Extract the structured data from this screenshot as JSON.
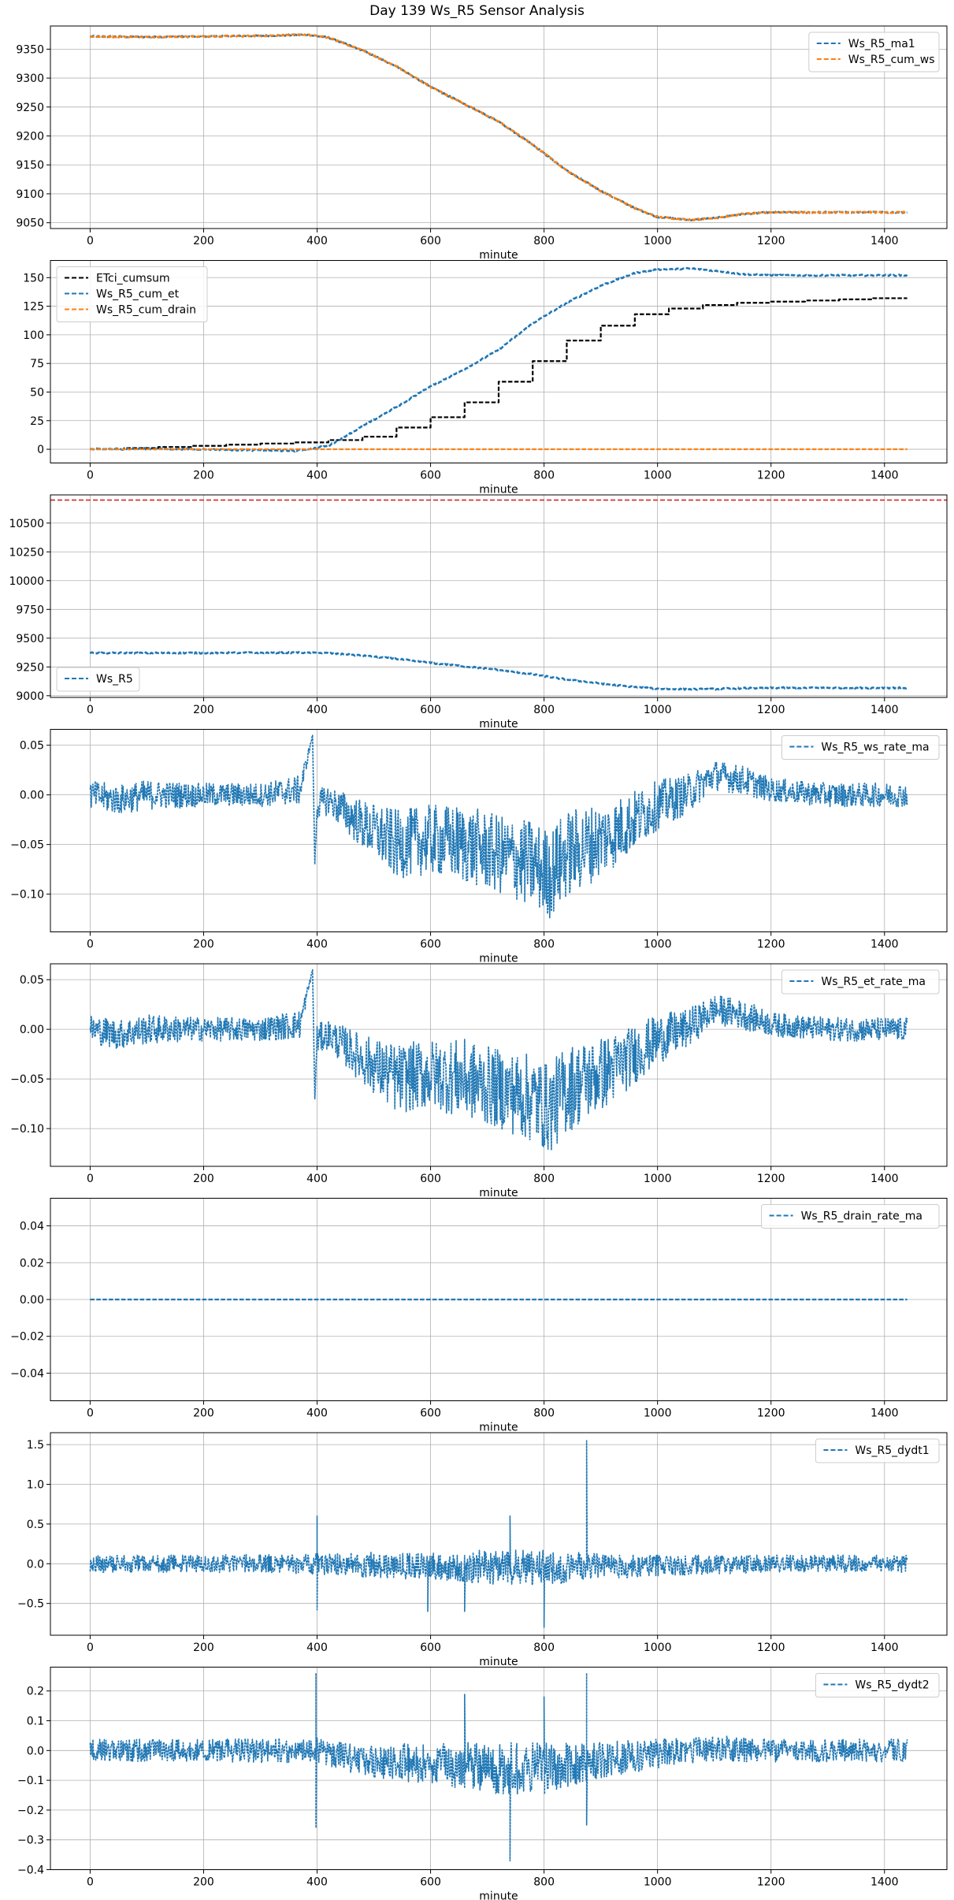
{
  "figure": {
    "title": "Day 139 Ws_R5 Sensor Analysis"
  },
  "colors": {
    "blue": "#1f77b4",
    "orange": "#ff7f0e",
    "black": "#000000",
    "red": "#d62728",
    "grid": "#b0b0b0"
  },
  "chart_data": [
    {
      "type": "line",
      "xlabel": "minute",
      "xlim": [
        -70,
        1510
      ],
      "ylim": [
        9040,
        9390
      ],
      "xticks": [
        0,
        200,
        400,
        600,
        800,
        1000,
        1200,
        1400
      ],
      "yticks": [
        9050,
        9100,
        9150,
        9200,
        9250,
        9300,
        9350
      ],
      "grid": true,
      "legend": "top-right",
      "series": [
        {
          "name": "Ws_R5_ma1",
          "color": "#1f77b4",
          "style": "dashed",
          "x": [
            0,
            100,
            200,
            300,
            380,
            420,
            480,
            540,
            600,
            660,
            720,
            780,
            840,
            900,
            960,
            1000,
            1060,
            1100,
            1150,
            1200,
            1300,
            1440
          ],
          "y": [
            9372,
            9371,
            9372,
            9373,
            9375,
            9370,
            9348,
            9320,
            9285,
            9255,
            9225,
            9185,
            9140,
            9105,
            9075,
            9060,
            9055,
            9058,
            9065,
            9068,
            9068,
            9068
          ]
        },
        {
          "name": "Ws_R5_cum_ws",
          "color": "#ff7f0e",
          "style": "dashed",
          "x": [
            0,
            100,
            200,
            300,
            380,
            420,
            480,
            540,
            600,
            660,
            720,
            780,
            840,
            900,
            960,
            1000,
            1060,
            1100,
            1150,
            1200,
            1300,
            1440
          ],
          "y": [
            9372,
            9371,
            9372,
            9373,
            9375,
            9370,
            9348,
            9320,
            9285,
            9255,
            9225,
            9185,
            9140,
            9105,
            9075,
            9060,
            9055,
            9058,
            9065,
            9068,
            9068,
            9068
          ]
        }
      ]
    },
    {
      "type": "line",
      "xlabel": "minute",
      "xlim": [
        -70,
        1510
      ],
      "ylim": [
        -12,
        165
      ],
      "xticks": [
        0,
        200,
        400,
        600,
        800,
        1000,
        1200,
        1400
      ],
      "yticks": [
        0,
        25,
        50,
        75,
        100,
        125,
        150
      ],
      "grid": true,
      "legend": "top-left",
      "series": [
        {
          "name": "ETci_cumsum",
          "color": "#000000",
          "style": "dashed",
          "step": true,
          "x": [
            0,
            60,
            120,
            180,
            240,
            300,
            360,
            420,
            480,
            540,
            600,
            660,
            720,
            780,
            840,
            900,
            960,
            1020,
            1080,
            1140,
            1200,
            1260,
            1320,
            1380,
            1440
          ],
          "y": [
            0,
            1,
            2,
            3,
            4,
            5,
            6,
            8,
            11,
            19,
            28,
            41,
            59,
            77,
            95,
            108,
            118,
            123,
            126,
            128,
            129,
            130,
            131,
            132,
            132
          ]
        },
        {
          "name": "Ws_R5_cum_et",
          "color": "#1f77b4",
          "style": "dashed",
          "x": [
            0,
            100,
            200,
            300,
            360,
            420,
            480,
            540,
            600,
            660,
            720,
            780,
            840,
            900,
            960,
            1000,
            1060,
            1100,
            1150,
            1200,
            1300,
            1440
          ],
          "y": [
            0,
            0.5,
            0,
            -1,
            -1.5,
            3,
            20,
            37,
            55,
            70,
            87,
            110,
            128,
            143,
            154,
            157,
            158,
            156,
            153,
            152,
            152,
            152
          ]
        },
        {
          "name": "Ws_R5_cum_drain",
          "color": "#ff7f0e",
          "style": "dashed",
          "x": [
            0,
            1440
          ],
          "y": [
            0,
            0
          ]
        }
      ]
    },
    {
      "type": "line",
      "xlabel": "minute",
      "xlim": [
        -70,
        1510
      ],
      "ylim": [
        8985,
        10745
      ],
      "xticks": [
        0,
        200,
        400,
        600,
        800,
        1000,
        1200,
        1400
      ],
      "yticks": [
        9000,
        9250,
        9500,
        9750,
        10000,
        10250,
        10500,
        10750
      ],
      "grid": true,
      "legend": "bottom-left",
      "hline": {
        "y": 10700,
        "color": "#d62728",
        "style": "dashed"
      },
      "series": [
        {
          "name": "Ws_R5",
          "color": "#1f77b4",
          "style": "dashed",
          "x": [
            0,
            100,
            200,
            300,
            380,
            420,
            480,
            540,
            600,
            660,
            720,
            780,
            840,
            900,
            960,
            1000,
            1060,
            1100,
            1150,
            1200,
            1300,
            1440
          ],
          "y": [
            9372,
            9371,
            9372,
            9373,
            9375,
            9370,
            9348,
            9320,
            9285,
            9255,
            9225,
            9185,
            9140,
            9105,
            9075,
            9060,
            9055,
            9058,
            9065,
            9068,
            9068,
            9068
          ]
        }
      ]
    },
    {
      "type": "line",
      "xlabel": "minute",
      "xlim": [
        -70,
        1510
      ],
      "ylim": [
        -0.138,
        0.066
      ],
      "xticks": [
        0,
        200,
        400,
        600,
        800,
        1000,
        1200,
        1400
      ],
      "yticks": [
        -0.1,
        -0.05,
        0.0,
        0.05
      ],
      "grid": true,
      "legend": "top-right",
      "series": [
        {
          "name": "Ws_R5_ws_rate_ma",
          "color": "#1f77b4",
          "style": "dashed",
          "noisy": true,
          "x": [
            0,
            50,
            100,
            200,
            300,
            370,
            392,
            396,
            400,
            420,
            480,
            540,
            600,
            660,
            720,
            780,
            810,
            840,
            880,
            920,
            960,
            1000,
            1050,
            1100,
            1150,
            1200,
            1300,
            1440
          ],
          "y": [
            0,
            -0.005,
            0,
            0,
            0,
            0.005,
            0.06,
            -0.07,
            -0.01,
            -0.005,
            -0.03,
            -0.05,
            -0.045,
            -0.05,
            -0.06,
            -0.07,
            -0.08,
            -0.06,
            -0.05,
            -0.04,
            -0.025,
            -0.01,
            0,
            0.02,
            0.015,
            0.005,
            0,
            0
          ],
          "amp": [
            0.015,
            0.015,
            0.015,
            0.012,
            0.012,
            0.015,
            0,
            0,
            0.015,
            0.015,
            0.025,
            0.035,
            0.035,
            0.04,
            0.04,
            0.045,
            0.045,
            0.045,
            0.04,
            0.035,
            0.03,
            0.025,
            0.02,
            0.015,
            0.015,
            0.012,
            0.012,
            0.012
          ]
        }
      ]
    },
    {
      "type": "line",
      "xlabel": "minute",
      "xlim": [
        -70,
        1510
      ],
      "ylim": [
        -0.138,
        0.066
      ],
      "xticks": [
        0,
        200,
        400,
        600,
        800,
        1000,
        1200,
        1400
      ],
      "yticks": [
        -0.1,
        -0.05,
        0.0,
        0.05
      ],
      "grid": true,
      "legend": "top-right",
      "series": [
        {
          "name": "Ws_R5_et_rate_ma",
          "color": "#1f77b4",
          "style": "dashed",
          "noisy": true,
          "x": [
            0,
            50,
            100,
            200,
            300,
            370,
            392,
            396,
            400,
            420,
            480,
            540,
            600,
            660,
            720,
            780,
            810,
            840,
            880,
            920,
            960,
            1000,
            1050,
            1100,
            1150,
            1200,
            1300,
            1440
          ],
          "y": [
            0,
            -0.005,
            0,
            0,
            0,
            0.005,
            0.06,
            -0.07,
            -0.01,
            -0.005,
            -0.03,
            -0.05,
            -0.045,
            -0.05,
            -0.06,
            -0.07,
            -0.08,
            -0.06,
            -0.05,
            -0.04,
            -0.025,
            -0.01,
            0,
            0.02,
            0.015,
            0.005,
            0,
            0
          ],
          "amp": [
            0.015,
            0.015,
            0.015,
            0.012,
            0.012,
            0.015,
            0,
            0,
            0.015,
            0.015,
            0.025,
            0.035,
            0.035,
            0.04,
            0.04,
            0.045,
            0.045,
            0.045,
            0.04,
            0.035,
            0.03,
            0.025,
            0.02,
            0.015,
            0.015,
            0.012,
            0.012,
            0.012
          ]
        }
      ]
    },
    {
      "type": "line",
      "xlabel": "minute",
      "xlim": [
        -70,
        1510
      ],
      "ylim": [
        -0.055,
        0.055
      ],
      "xticks": [
        0,
        200,
        400,
        600,
        800,
        1000,
        1200,
        1400
      ],
      "yticks": [
        -0.04,
        -0.02,
        0.0,
        0.02,
        0.04
      ],
      "grid": true,
      "legend": "top-right",
      "series": [
        {
          "name": "Ws_R5_drain_rate_ma",
          "color": "#1f77b4",
          "style": "dashed",
          "x": [
            0,
            1440
          ],
          "y": [
            0,
            0
          ]
        }
      ]
    },
    {
      "type": "line",
      "xlabel": "minute",
      "xlim": [
        -70,
        1510
      ],
      "ylim": [
        -0.9,
        1.65
      ],
      "xticks": [
        0,
        200,
        400,
        600,
        800,
        1000,
        1200,
        1400
      ],
      "yticks": [
        -0.5,
        0.0,
        0.5,
        1.0,
        1.5
      ],
      "grid": true,
      "legend": "top-right",
      "series": [
        {
          "name": "Ws_R5_dydt1",
          "color": "#1f77b4",
          "style": "dashed",
          "spiky": true,
          "x": [
            0,
            200,
            400,
            500,
            600,
            700,
            800,
            900,
            1000,
            1200,
            1440
          ],
          "y": [
            0,
            0,
            0,
            -0.02,
            -0.03,
            -0.04,
            -0.05,
            -0.04,
            -0.02,
            0,
            0
          ],
          "amp": [
            0.1,
            0.1,
            0.12,
            0.15,
            0.15,
            0.2,
            0.2,
            0.15,
            0.12,
            0.1,
            0.1
          ],
          "spikes": [
            [
              400,
              0.6
            ],
            [
              400,
              -0.58
            ],
            [
              595,
              -0.6
            ],
            [
              660,
              -0.6
            ],
            [
              740,
              0.6
            ],
            [
              800,
              -0.8
            ],
            [
              875,
              1.55
            ]
          ]
        }
      ]
    },
    {
      "type": "line",
      "xlabel": "minute",
      "xlim": [
        -70,
        1510
      ],
      "ylim": [
        -0.4,
        0.28
      ],
      "xticks": [
        0,
        200,
        400,
        600,
        800,
        1000,
        1200,
        1400
      ],
      "yticks": [
        -0.4,
        -0.3,
        -0.2,
        -0.1,
        0.0,
        0.1,
        0.2
      ],
      "grid": true,
      "legend": "top-right",
      "series": [
        {
          "name": "Ws_R5_dydt2",
          "color": "#1f77b4",
          "style": "dashed",
          "spiky": true,
          "x": [
            0,
            200,
            400,
            480,
            560,
            640,
            720,
            800,
            880,
            960,
            1040,
            1120,
            1200,
            1440
          ],
          "y": [
            0,
            0,
            0,
            -0.03,
            -0.04,
            -0.05,
            -0.06,
            -0.06,
            -0.04,
            -0.02,
            0,
            0.005,
            0,
            0
          ],
          "amp": [
            0.035,
            0.035,
            0.04,
            0.05,
            0.06,
            0.07,
            0.08,
            0.08,
            0.06,
            0.05,
            0.04,
            0.04,
            0.035,
            0.035
          ],
          "spikes": [
            [
              398,
              0.26
            ],
            [
              398,
              -0.26
            ],
            [
              660,
              0.19
            ],
            [
              740,
              -0.37
            ],
            [
              800,
              0.18
            ],
            [
              875,
              0.26
            ],
            [
              875,
              -0.25
            ]
          ]
        }
      ]
    }
  ]
}
